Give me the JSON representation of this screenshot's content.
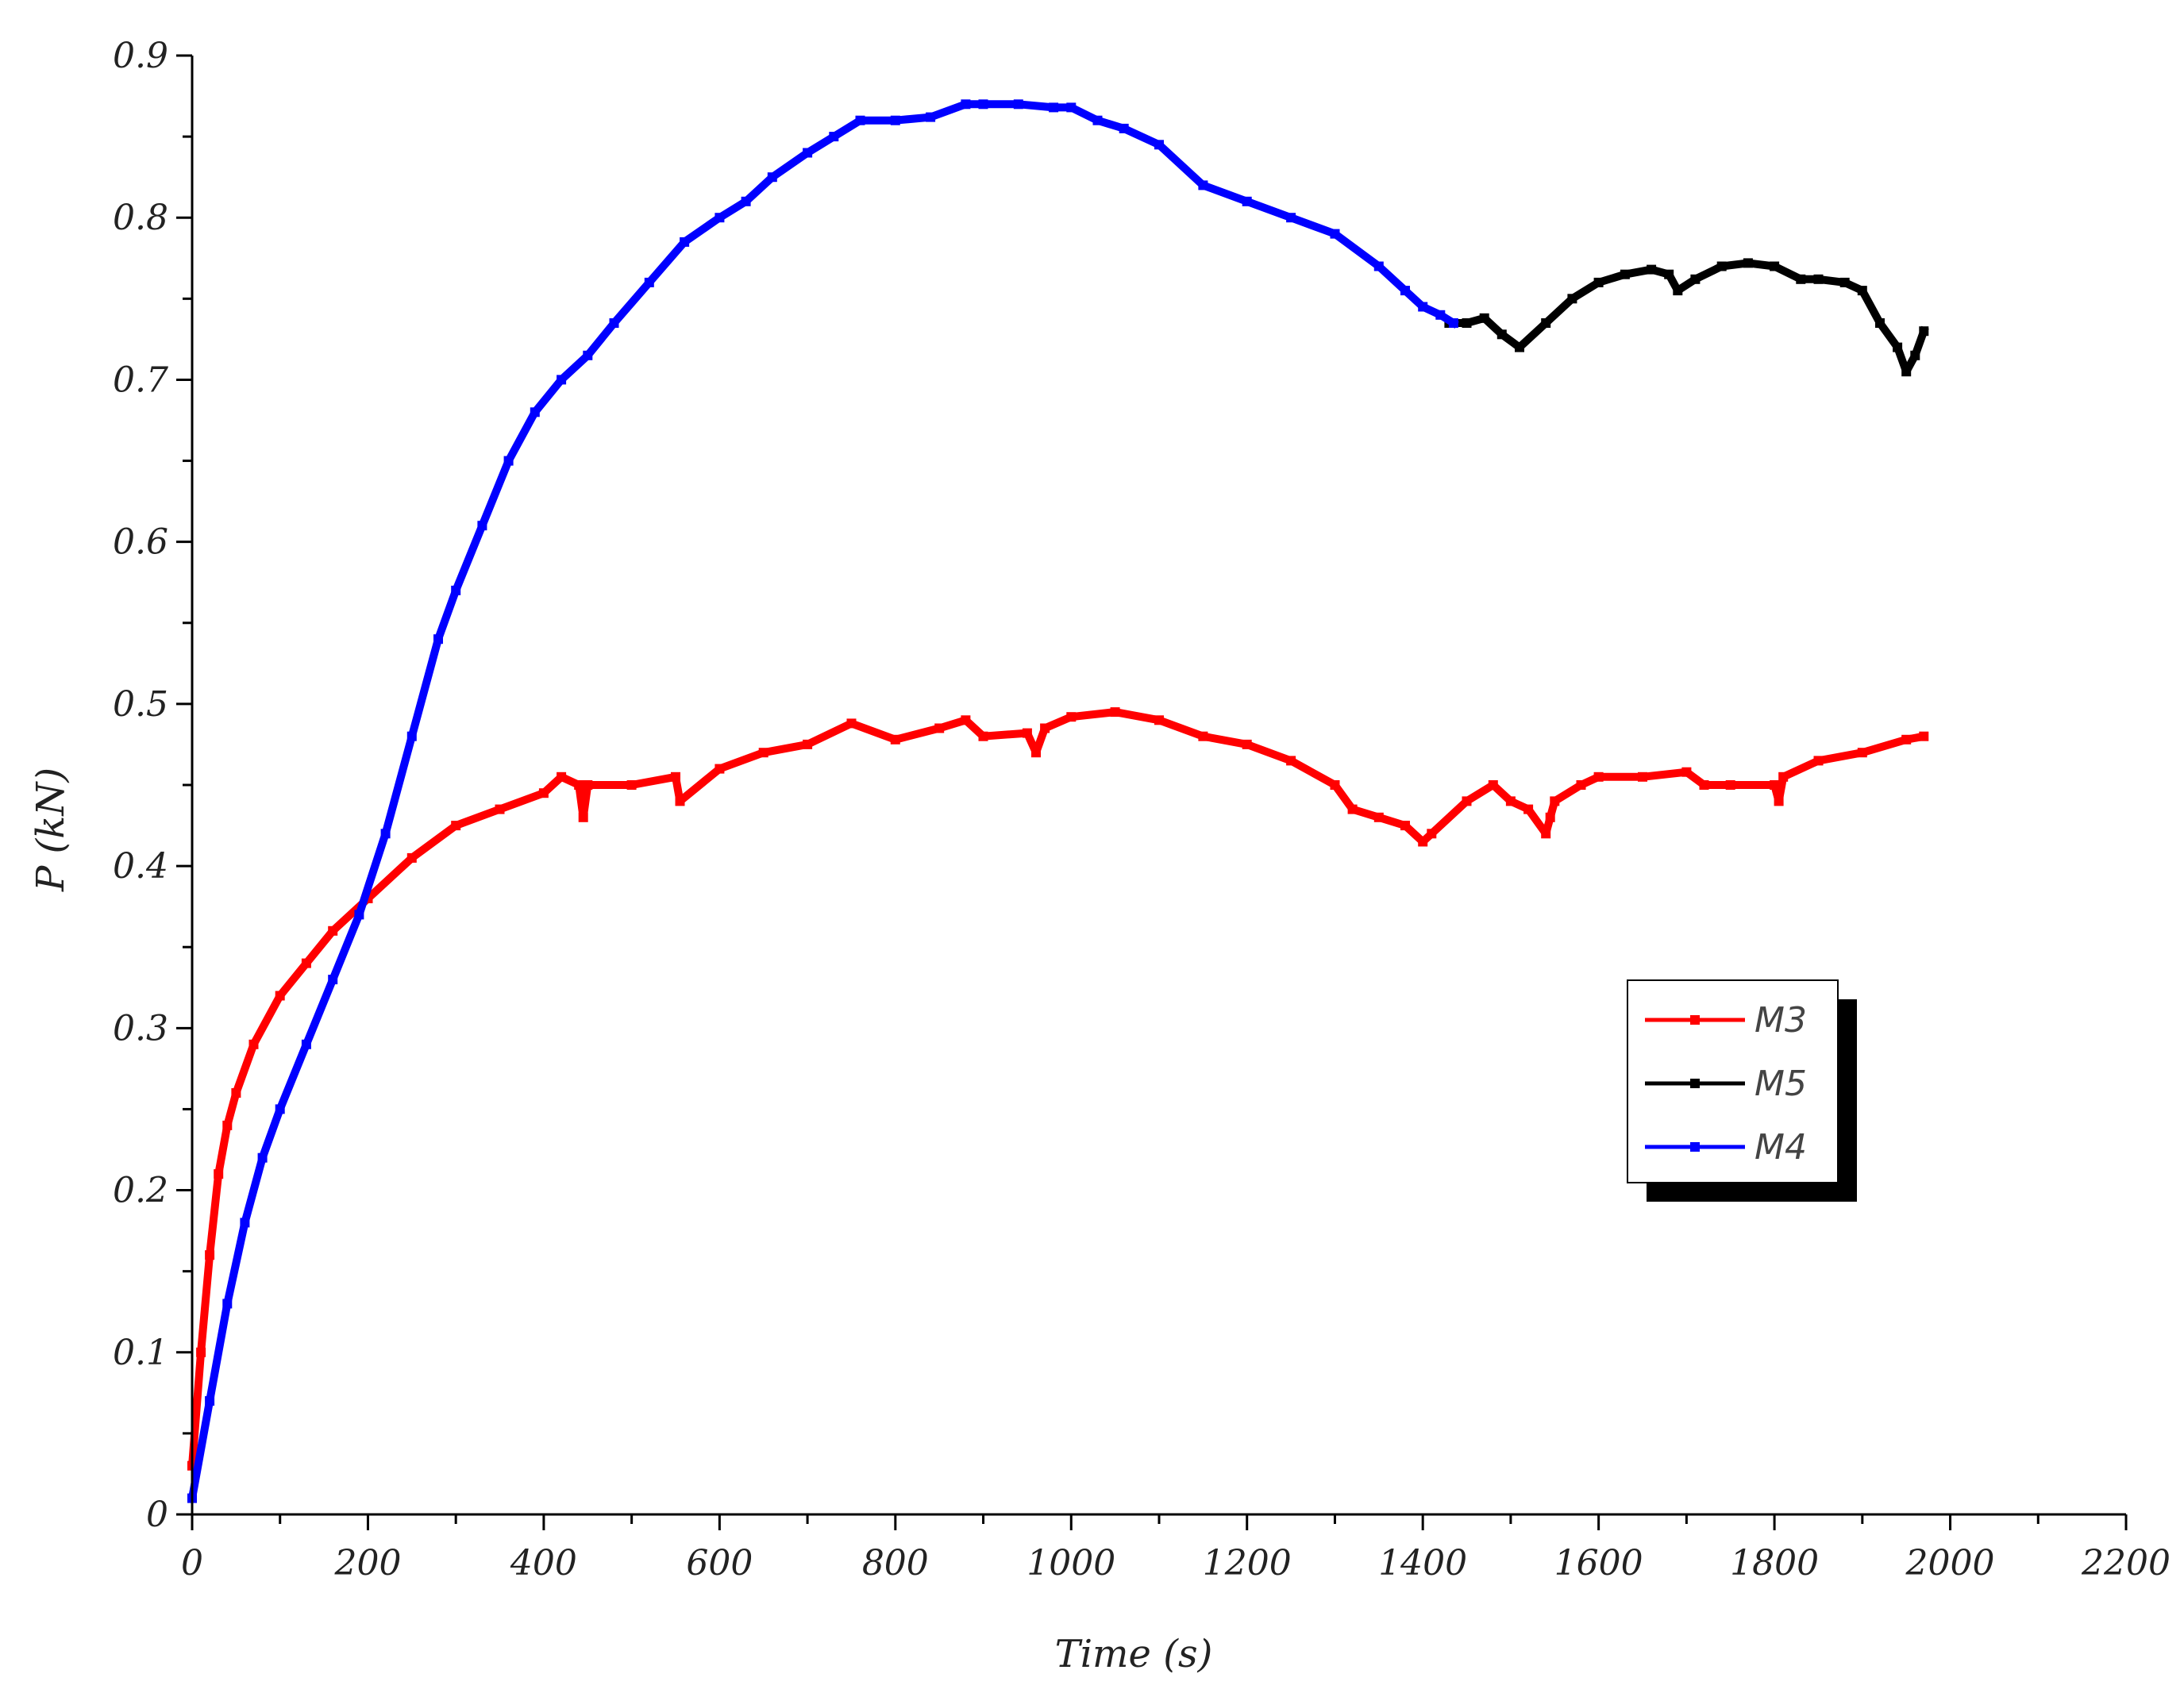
{
  "chart_data": {
    "type": "line",
    "xlabel": "Time (s)",
    "ylabel": "P (kN)",
    "xlim": [
      0,
      2200
    ],
    "ylim": [
      0,
      0.9
    ],
    "x_ticks": [
      0,
      200,
      400,
      600,
      800,
      1000,
      1200,
      1400,
      1600,
      1800,
      2000,
      2200
    ],
    "y_ticks": [
      0,
      0.1,
      0.2,
      0.3,
      0.4,
      0.5,
      0.6,
      0.7,
      0.8,
      0.9
    ],
    "x_tick_labels": [
      "0",
      "200",
      "400",
      "600",
      "800",
      "1000",
      "1200",
      "1400",
      "1600",
      "1800",
      "2000",
      "2200"
    ],
    "y_tick_labels": [
      "0",
      "0.1",
      "0.2",
      "0.3",
      "0.4",
      "0.5",
      "0.6",
      "0.7",
      "0.8",
      "0.9"
    ],
    "grid": false,
    "legend": {
      "position": "right",
      "entries": [
        "M3",
        "M5",
        "M4"
      ]
    },
    "series": [
      {
        "name": "M3",
        "color": "#ff0000",
        "x": [
          0,
          10,
          20,
          30,
          40,
          50,
          70,
          100,
          130,
          160,
          200,
          250,
          300,
          350,
          400,
          420,
          440,
          445,
          450,
          500,
          550,
          555,
          600,
          650,
          700,
          750,
          800,
          850,
          880,
          900,
          950,
          960,
          970,
          1000,
          1050,
          1100,
          1150,
          1200,
          1250,
          1300,
          1320,
          1350,
          1380,
          1400,
          1410,
          1450,
          1480,
          1500,
          1520,
          1540,
          1545,
          1550,
          1580,
          1600,
          1650,
          1700,
          1720,
          1750,
          1800,
          1805,
          1810,
          1850,
          1900,
          1950,
          1970
        ],
        "y": [
          0.03,
          0.1,
          0.16,
          0.21,
          0.24,
          0.26,
          0.29,
          0.32,
          0.34,
          0.36,
          0.38,
          0.405,
          0.425,
          0.435,
          0.445,
          0.455,
          0.45,
          0.43,
          0.45,
          0.45,
          0.455,
          0.44,
          0.46,
          0.47,
          0.475,
          0.488,
          0.478,
          0.485,
          0.49,
          0.48,
          0.482,
          0.47,
          0.485,
          0.492,
          0.495,
          0.49,
          0.48,
          0.475,
          0.465,
          0.45,
          0.435,
          0.43,
          0.425,
          0.415,
          0.42,
          0.44,
          0.45,
          0.44,
          0.435,
          0.42,
          0.43,
          0.44,
          0.45,
          0.455,
          0.455,
          0.458,
          0.45,
          0.45,
          0.45,
          0.44,
          0.455,
          0.465,
          0.47,
          0.478,
          0.48
        ]
      },
      {
        "name": "M5",
        "color": "#000000",
        "x": [
          1430,
          1450,
          1470,
          1490,
          1510,
          1540,
          1570,
          1600,
          1630,
          1660,
          1680,
          1690,
          1710,
          1740,
          1770,
          1800,
          1830,
          1850,
          1880,
          1900,
          1920,
          1940,
          1950,
          1960,
          1970
        ],
        "y": [
          0.735,
          0.735,
          0.738,
          0.728,
          0.72,
          0.735,
          0.75,
          0.76,
          0.765,
          0.768,
          0.765,
          0.755,
          0.762,
          0.77,
          0.772,
          0.77,
          0.762,
          0.762,
          0.76,
          0.755,
          0.735,
          0.72,
          0.705,
          0.715,
          0.73
        ]
      },
      {
        "name": "M4",
        "color": "#0000ff",
        "x": [
          0,
          20,
          40,
          60,
          80,
          100,
          130,
          160,
          190,
          220,
          250,
          280,
          300,
          330,
          360,
          390,
          420,
          450,
          480,
          520,
          560,
          600,
          630,
          660,
          700,
          730,
          760,
          800,
          840,
          880,
          900,
          940,
          980,
          1000,
          1030,
          1060,
          1100,
          1150,
          1200,
          1250,
          1300,
          1350,
          1380,
          1400,
          1420,
          1435
        ],
        "y": [
          0.01,
          0.07,
          0.13,
          0.18,
          0.22,
          0.25,
          0.29,
          0.33,
          0.37,
          0.42,
          0.48,
          0.54,
          0.57,
          0.61,
          0.65,
          0.68,
          0.7,
          0.715,
          0.735,
          0.76,
          0.785,
          0.8,
          0.81,
          0.825,
          0.84,
          0.85,
          0.86,
          0.86,
          0.862,
          0.87,
          0.87,
          0.87,
          0.868,
          0.868,
          0.86,
          0.855,
          0.845,
          0.82,
          0.81,
          0.8,
          0.79,
          0.77,
          0.755,
          0.745,
          0.74,
          0.735
        ]
      }
    ]
  }
}
